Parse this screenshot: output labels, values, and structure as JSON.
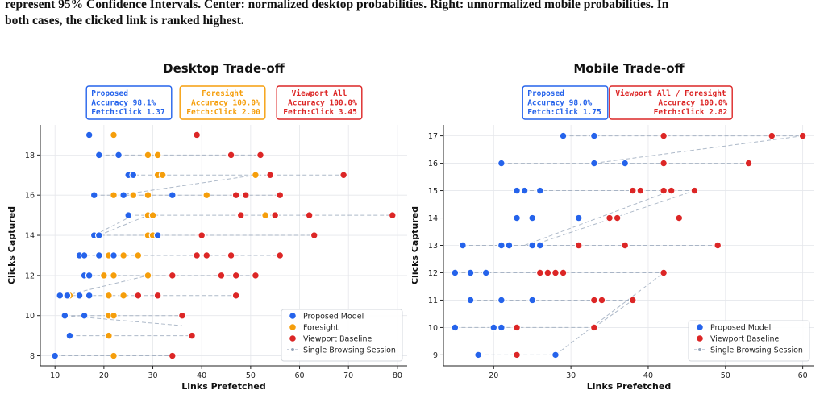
{
  "caption": {
    "line1": "represent 95% Confidence Intervals. Center: normalized desktop probabilities. Right: unnormalized mobile probabilities. In",
    "line2": "both cases, the clicked link is ranked highest."
  },
  "colors": {
    "proposed": "#2563eb",
    "foresight": "#f59e0b",
    "viewport": "#dc2626",
    "session": "#94a3b8"
  },
  "chart_data": [
    {
      "type": "scatter",
      "title": "Desktop Trade-off",
      "xlabel": "Links Prefetched",
      "ylabel": "Clicks Captured",
      "xlim": [
        7,
        82
      ],
      "ylim": [
        7.5,
        19.5
      ],
      "xticks": [
        10,
        20,
        30,
        40,
        50,
        60,
        70,
        80
      ],
      "yticks": [
        8,
        10,
        12,
        14,
        16,
        18
      ],
      "grid": true,
      "legend_position": "bottom-right",
      "legend": [
        "Proposed Model",
        "Foresight",
        "Viewport Baseline",
        "Single Browsing Session"
      ],
      "summary_boxes": [
        {
          "lines": [
            "Proposed",
            "Accuracy 98.1%",
            "Fetch:Click 1.37"
          ],
          "color": "proposed"
        },
        {
          "lines": [
            "Foresight",
            "Accuracy 100.0%",
            "Fetch:Click 2.00"
          ],
          "color": "foresight"
        },
        {
          "lines": [
            "Viewport All",
            "Accuracy 100.0%",
            "Fetch:Click 3.45"
          ],
          "color": "viewport"
        }
      ],
      "series": [
        {
          "name": "Proposed Model",
          "color": "proposed",
          "points": [
            [
              10,
              8
            ],
            [
              13,
              9
            ],
            [
              12,
              10
            ],
            [
              16,
              10
            ],
            [
              11,
              11
            ],
            [
              12.5,
              11
            ],
            [
              15,
              11
            ],
            [
              17,
              11
            ],
            [
              16,
              12
            ],
            [
              17,
              12
            ],
            [
              15,
              13
            ],
            [
              16,
              13
            ],
            [
              19,
              13
            ],
            [
              22,
              13
            ],
            [
              18,
              14
            ],
            [
              19,
              14
            ],
            [
              31,
              14
            ],
            [
              25,
              15
            ],
            [
              18,
              16
            ],
            [
              24,
              16
            ],
            [
              34,
              16
            ],
            [
              25,
              17
            ],
            [
              26,
              17
            ],
            [
              19,
              18
            ],
            [
              23,
              18
            ],
            [
              17,
              19
            ]
          ]
        },
        {
          "name": "Foresight",
          "color": "foresight",
          "points": [
            [
              22,
              8
            ],
            [
              21,
              9
            ],
            [
              21,
              10
            ],
            [
              22,
              10
            ],
            [
              13,
              11
            ],
            [
              21,
              11
            ],
            [
              24,
              11
            ],
            [
              20,
              12
            ],
            [
              22,
              12
            ],
            [
              29,
              12
            ],
            [
              21,
              13
            ],
            [
              24,
              13
            ],
            [
              27,
              13
            ],
            [
              29,
              14
            ],
            [
              30,
              14
            ],
            [
              29,
              15
            ],
            [
              30,
              15
            ],
            [
              53,
              15
            ],
            [
              22,
              16
            ],
            [
              26,
              16
            ],
            [
              29,
              16
            ],
            [
              41,
              16
            ],
            [
              31,
              17
            ],
            [
              32,
              17
            ],
            [
              51,
              17
            ],
            [
              29,
              18
            ],
            [
              31,
              18
            ],
            [
              22,
              19
            ]
          ]
        },
        {
          "name": "Viewport Baseline",
          "color": "viewport",
          "points": [
            [
              34,
              8
            ],
            [
              38,
              9
            ],
            [
              36,
              10
            ],
            [
              27,
              11
            ],
            [
              31,
              11
            ],
            [
              47,
              11
            ],
            [
              34,
              12
            ],
            [
              44,
              12
            ],
            [
              47,
              12
            ],
            [
              51,
              12
            ],
            [
              39,
              13
            ],
            [
              41,
              13
            ],
            [
              46,
              13
            ],
            [
              56,
              13
            ],
            [
              40,
              14
            ],
            [
              63,
              14
            ],
            [
              48,
              15
            ],
            [
              55,
              15
            ],
            [
              62,
              15
            ],
            [
              79,
              15
            ],
            [
              47,
              16
            ],
            [
              49,
              16
            ],
            [
              56,
              16
            ],
            [
              54,
              17
            ],
            [
              69,
              17
            ],
            [
              46,
              18
            ],
            [
              52,
              18
            ],
            [
              39,
              19
            ]
          ]
        }
      ],
      "session_lines": [
        {
          "y": 8,
          "x": [
            10,
            22,
            34
          ]
        },
        {
          "y": 9,
          "x": [
            13,
            21,
            38
          ]
        },
        {
          "y": 10,
          "x": [
            12,
            16,
            21,
            22,
            36
          ]
        },
        {
          "y": 11,
          "x": [
            11,
            12.5,
            13,
            15,
            17,
            21,
            24,
            27,
            31,
            47
          ]
        },
        {
          "y": 12,
          "x": [
            16,
            17,
            20,
            22,
            29,
            34,
            44,
            47,
            51
          ]
        },
        {
          "y": 13,
          "x": [
            15,
            16,
            19,
            21,
            22,
            24,
            27,
            39,
            41,
            46,
            56
          ]
        },
        {
          "y": 14,
          "x": [
            18,
            19,
            29,
            30,
            31,
            40,
            63
          ]
        },
        {
          "y": 15,
          "x": [
            25,
            29,
            30,
            48,
            53,
            55,
            62,
            79
          ]
        },
        {
          "y": 16,
          "x": [
            18,
            22,
            24,
            26,
            29,
            34,
            41,
            47,
            49,
            56
          ]
        },
        {
          "y": 17,
          "x": [
            25,
            26,
            31,
            32,
            51,
            54,
            69
          ]
        },
        {
          "y": 18,
          "x": [
            19,
            23,
            29,
            31,
            46,
            52
          ]
        },
        {
          "y": 19,
          "x": [
            17,
            22,
            39
          ]
        }
      ],
      "diagonals": [
        [
          [
            12,
            10
          ],
          [
            36,
            9.5
          ]
        ],
        [
          [
            12,
            11
          ],
          [
            29,
            12
          ]
        ],
        [
          [
            23,
            16
          ],
          [
            51,
            17
          ]
        ],
        [
          [
            19,
            14
          ],
          [
            29,
            15
          ]
        ],
        [
          [
            18,
            14
          ],
          [
            26,
            15
          ]
        ]
      ]
    },
    {
      "type": "scatter",
      "title": "Mobile Trade-off",
      "xlabel": "Links Prefetched",
      "ylabel": "Clicks Captured",
      "xlim": [
        13.5,
        61.5
      ],
      "ylim": [
        8.6,
        17.4
      ],
      "xticks": [
        20,
        30,
        40,
        50,
        60
      ],
      "yticks": [
        9,
        10,
        11,
        12,
        13,
        14,
        15,
        16,
        17
      ],
      "grid": true,
      "legend_position": "bottom-right",
      "legend": [
        "Proposed Model",
        "Viewport Baseline",
        "Single Browsing Session"
      ],
      "summary_boxes": [
        {
          "lines": [
            "Proposed",
            "Accuracy 98.0%",
            "Fetch:Click 1.75"
          ],
          "color": "proposed"
        },
        {
          "lines": [
            "Viewport All / Foresight",
            "Accuracy 100.0%",
            "Fetch:Click 2.82"
          ],
          "color": "viewport"
        }
      ],
      "series": [
        {
          "name": "Proposed Model",
          "color": "proposed",
          "points": [
            [
              18,
              9
            ],
            [
              28,
              9
            ],
            [
              15,
              10
            ],
            [
              20,
              10
            ],
            [
              21,
              10
            ],
            [
              17,
              11
            ],
            [
              21,
              11
            ],
            [
              25,
              11
            ],
            [
              15,
              12
            ],
            [
              17,
              12
            ],
            [
              19,
              12
            ],
            [
              16,
              13
            ],
            [
              21,
              13
            ],
            [
              22,
              13
            ],
            [
              25,
              13
            ],
            [
              26,
              13
            ],
            [
              23,
              14
            ],
            [
              25,
              14
            ],
            [
              31,
              14
            ],
            [
              23,
              15
            ],
            [
              24,
              15
            ],
            [
              26,
              15
            ],
            [
              21,
              16
            ],
            [
              33,
              16
            ],
            [
              37,
              16
            ],
            [
              29,
              17
            ],
            [
              33,
              17
            ]
          ]
        },
        {
          "name": "Viewport Baseline",
          "color": "viewport",
          "points": [
            [
              23,
              9
            ],
            [
              23,
              10
            ],
            [
              33,
              10
            ],
            [
              33,
              11
            ],
            [
              34,
              11
            ],
            [
              38,
              11
            ],
            [
              26,
              12
            ],
            [
              27,
              12
            ],
            [
              28,
              12
            ],
            [
              29,
              12
            ],
            [
              42,
              12
            ],
            [
              31,
              13
            ],
            [
              37,
              13
            ],
            [
              49,
              13
            ],
            [
              35,
              14
            ],
            [
              36,
              14
            ],
            [
              44,
              14
            ],
            [
              38,
              15
            ],
            [
              39,
              15
            ],
            [
              42,
              15
            ],
            [
              43,
              15
            ],
            [
              46,
              15
            ],
            [
              42,
              16
            ],
            [
              53,
              16
            ],
            [
              42,
              17
            ],
            [
              56,
              17
            ],
            [
              60,
              17
            ]
          ]
        }
      ],
      "session_lines": [
        {
          "y": 9,
          "x": [
            18,
            23,
            28
          ]
        },
        {
          "y": 10,
          "x": [
            15,
            20,
            21,
            23,
            33
          ]
        },
        {
          "y": 11,
          "x": [
            17,
            21,
            25,
            33,
            34,
            38
          ]
        },
        {
          "y": 12,
          "x": [
            15,
            17,
            19,
            26,
            27,
            28,
            29,
            42
          ]
        },
        {
          "y": 13,
          "x": [
            16,
            21,
            22,
            25,
            26,
            31,
            37,
            49
          ]
        },
        {
          "y": 14,
          "x": [
            23,
            25,
            31,
            35,
            36,
            44
          ]
        },
        {
          "y": 15,
          "x": [
            23,
            24,
            26,
            38,
            39,
            42,
            43,
            46
          ]
        },
        {
          "y": 16,
          "x": [
            21,
            33,
            37,
            42,
            53
          ]
        },
        {
          "y": 17,
          "x": [
            29,
            33,
            42,
            56,
            60
          ]
        }
      ],
      "diagonals": [
        [
          [
            28,
            9
          ],
          [
            42,
            12
          ]
        ],
        [
          [
            33,
            10
          ],
          [
            38,
            11
          ]
        ],
        [
          [
            25,
            13
          ],
          [
            46,
            15
          ]
        ],
        [
          [
            24,
            13
          ],
          [
            43,
            15
          ]
        ],
        [
          [
            33,
            16
          ],
          [
            60,
            17
          ]
        ]
      ]
    }
  ]
}
